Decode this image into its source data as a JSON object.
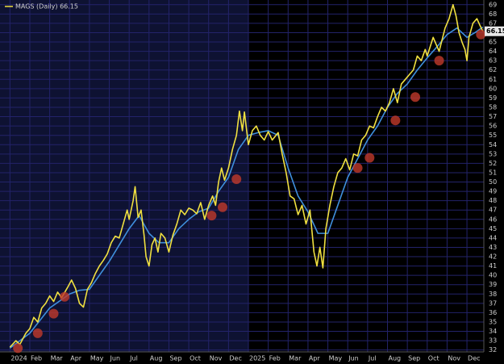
{
  "chart_data": {
    "type": "line",
    "xlim": [
      -0.5,
      23.85
    ],
    "ylim": [
      31.8,
      69.5
    ],
    "xticks": [
      {
        "value": 0,
        "label": "2024"
      },
      {
        "value": 1,
        "label": "Feb"
      },
      {
        "value": 2,
        "label": "Mar"
      },
      {
        "value": 3,
        "label": "Apr"
      },
      {
        "value": 4,
        "label": "May"
      },
      {
        "value": 5,
        "label": "Jun"
      },
      {
        "value": 6,
        "label": "Jul"
      },
      {
        "value": 7,
        "label": "Aug"
      },
      {
        "value": 8,
        "label": "Sep"
      },
      {
        "value": 9,
        "label": "Oct"
      },
      {
        "value": 10,
        "label": "Nov"
      },
      {
        "value": 11,
        "label": "Dec"
      },
      {
        "value": 12,
        "label": "2025"
      },
      {
        "value": 13,
        "label": "Feb"
      },
      {
        "value": 14,
        "label": "Mar"
      },
      {
        "value": 15,
        "label": "Apr"
      },
      {
        "value": 16,
        "label": "May"
      },
      {
        "value": 17,
        "label": "Jun"
      },
      {
        "value": 18,
        "label": "Jul"
      },
      {
        "value": 19,
        "label": "Aug"
      },
      {
        "value": 20,
        "label": "Sep"
      },
      {
        "value": 21,
        "label": "Oct"
      },
      {
        "value": 22,
        "label": "Nov"
      },
      {
        "value": 23,
        "label": "Dec"
      }
    ],
    "yticks": [
      32,
      33,
      34,
      35,
      36,
      37,
      38,
      39,
      40,
      41,
      42,
      43,
      44,
      45,
      46,
      47,
      48,
      49,
      50,
      51,
      52,
      53,
      54,
      55,
      56,
      57,
      58,
      59,
      60,
      61,
      62,
      63,
      64,
      65,
      66,
      67,
      68,
      69
    ],
    "grid": true,
    "background": "#000000",
    "shade_color": "#0e1232",
    "grid_color": "#23236a",
    "series": [
      {
        "name": "MAGS (Daily) 66.15",
        "color": "#f0e040",
        "x": [
          0,
          0.3,
          0.5,
          0.8,
          1.0,
          1.2,
          1.4,
          1.6,
          1.8,
          2.0,
          2.2,
          2.4,
          2.6,
          2.9,
          3.1,
          3.3,
          3.5,
          3.7,
          3.9,
          4.1,
          4.3,
          4.5,
          4.7,
          4.9,
          5.1,
          5.3,
          5.5,
          5.7,
          5.9,
          6.0,
          6.2,
          6.3,
          6.45,
          6.6,
          6.75,
          6.85,
          7.0,
          7.15,
          7.3,
          7.45,
          7.6,
          7.8,
          8.0,
          8.2,
          8.4,
          8.6,
          8.8,
          9.0,
          9.2,
          9.4,
          9.6,
          9.8,
          10.0,
          10.2,
          10.35,
          10.5,
          10.65,
          10.8,
          11.0,
          11.2,
          11.4,
          11.55,
          11.7,
          11.8,
          12.0,
          12.2,
          12.4,
          12.6,
          12.8,
          13.0,
          13.2,
          13.5,
          13.7,
          13.9,
          14.1,
          14.3,
          14.5,
          14.7,
          14.9,
          15.1,
          15.3,
          15.45,
          15.6,
          15.75,
          15.9,
          16.1,
          16.3,
          16.5,
          16.7,
          16.9,
          17.1,
          17.3,
          17.5,
          17.7,
          17.9,
          18.1,
          18.3,
          18.5,
          18.7,
          18.9,
          19.1,
          19.3,
          19.5,
          19.7,
          19.9,
          20.1,
          20.3,
          20.5,
          20.7,
          20.9,
          21.0,
          21.3,
          21.6,
          21.9,
          22.1,
          22.3,
          22.45,
          22.6,
          22.75,
          22.9,
          23.0,
          23.1,
          23.3,
          23.5,
          23.65,
          23.8
        ],
        "values": [
          32.3,
          33.0,
          32.6,
          33.8,
          34.3,
          35.5,
          35.0,
          36.5,
          37.0,
          37.8,
          37.2,
          38.2,
          37.6,
          38.7,
          39.5,
          38.6,
          37.0,
          36.6,
          38.5,
          39.2,
          40.2,
          41.0,
          41.6,
          42.3,
          43.5,
          44.2,
          44.0,
          45.5,
          47.0,
          46.0,
          48.0,
          49.5,
          46.2,
          47.0,
          44.3,
          42.0,
          41.0,
          43.3,
          44.0,
          42.5,
          44.5,
          44.0,
          42.5,
          44.3,
          45.5,
          47.0,
          46.5,
          47.2,
          47.0,
          46.6,
          47.8,
          46.0,
          47.5,
          48.5,
          47.5,
          50.0,
          51.5,
          50.2,
          51.5,
          53.5,
          55.0,
          57.6,
          55.5,
          57.5,
          54.0,
          55.5,
          56.0,
          55.0,
          54.5,
          55.4,
          54.5,
          55.3,
          53.0,
          51.0,
          48.5,
          48.2,
          46.5,
          47.5,
          45.5,
          47.0,
          42.5,
          41.0,
          43.0,
          40.8,
          45.0,
          47.5,
          49.5,
          51.0,
          51.5,
          52.5,
          51.3,
          53.0,
          52.8,
          54.5,
          55.0,
          56.0,
          55.8,
          57.0,
          58.0,
          57.6,
          58.5,
          60.0,
          58.5,
          60.5,
          61.0,
          61.5,
          62.0,
          63.5,
          63.0,
          64.2,
          63.5,
          65.5,
          64.0,
          66.5,
          67.5,
          69.0,
          67.8,
          66.0,
          65.0,
          64.2,
          63.0,
          65.5,
          67.0,
          67.5,
          66.8,
          66.15
        ]
      },
      {
        "color": "#3f8fdc",
        "x": [
          0,
          1,
          2,
          3,
          3.5,
          4,
          5,
          6,
          6.5,
          7,
          7.5,
          8,
          8.5,
          9,
          9.5,
          10,
          10.5,
          11,
          11.5,
          12,
          12.5,
          13,
          13.5,
          14,
          14.5,
          15,
          15.5,
          16,
          16.5,
          17,
          17.5,
          18,
          18.5,
          19,
          19.5,
          20,
          20.5,
          21,
          21.5,
          22,
          22.5,
          23,
          23.4,
          23.8
        ],
        "values": [
          32.2,
          33.8,
          36.5,
          38.0,
          38.4,
          38.5,
          41.5,
          45.0,
          46.4,
          44.5,
          43.5,
          43.5,
          45.0,
          46.0,
          46.8,
          47.2,
          49.0,
          50.5,
          53.5,
          55.0,
          55.3,
          55.5,
          55.0,
          51.5,
          48.5,
          46.8,
          44.5,
          44.5,
          47.5,
          50.5,
          52.5,
          54.5,
          56.0,
          58.0,
          59.5,
          60.5,
          62.0,
          63.3,
          64.5,
          65.8,
          66.5,
          65.5,
          66.0,
          66.6
        ]
      }
    ],
    "markers": {
      "color": "#c0392b",
      "x": [
        0.4,
        1.4,
        2.2,
        2.75,
        10.15,
        10.7,
        11.4,
        17.5,
        18.1,
        19.4,
        20.4,
        21.6,
        23.7
      ],
      "y": [
        32.2,
        33.8,
        35.9,
        37.7,
        46.4,
        47.3,
        50.3,
        51.5,
        52.6,
        56.6,
        59.1,
        63.0,
        65.8
      ]
    }
  }
}
